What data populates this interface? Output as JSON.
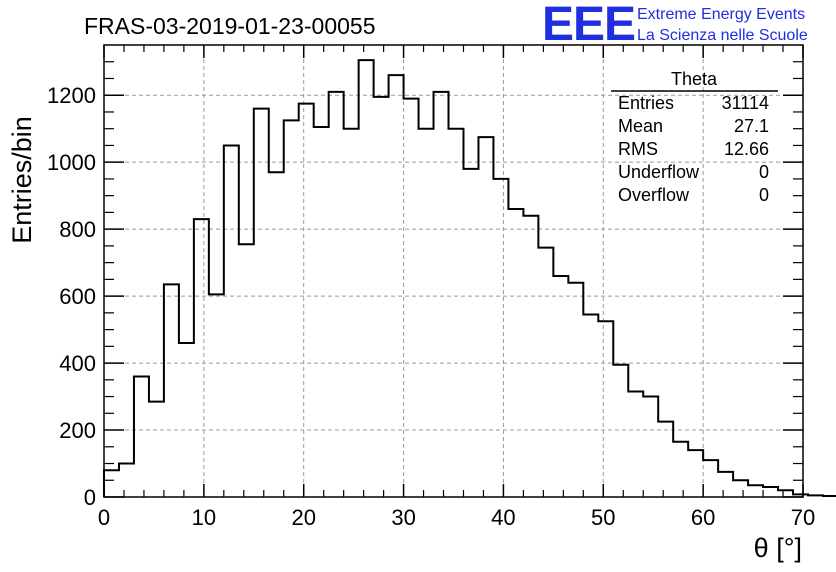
{
  "chart_data": {
    "type": "histogram",
    "title": "FRAS-03-2019-01-23-00055",
    "xlabel": "θ [°]",
    "ylabel": "Entries/bin",
    "xlim": [
      0,
      70
    ],
    "ylim": [
      0,
      1350
    ],
    "xticks": [
      0,
      10,
      20,
      30,
      40,
      50,
      60,
      70
    ],
    "yticks": [
      0,
      200,
      400,
      600,
      800,
      1000,
      1200
    ],
    "grid": true,
    "bin_width": 1.5,
    "bin_start": 0,
    "values": [
      80,
      100,
      360,
      285,
      635,
      460,
      830,
      605,
      1050,
      755,
      1160,
      970,
      1125,
      1175,
      1105,
      1210,
      1100,
      1305,
      1195,
      1260,
      1190,
      1100,
      1210,
      1100,
      980,
      1075,
      950,
      860,
      840,
      745,
      660,
      640,
      545,
      525,
      395,
      315,
      300,
      225,
      165,
      140,
      110,
      75,
      50,
      35,
      30,
      20,
      8,
      5,
      3,
      1
    ],
    "stats": {
      "name": "Theta",
      "rows": [
        {
          "label": "Entries",
          "value": "31114"
        },
        {
          "label": "Mean",
          "value": "27.1"
        },
        {
          "label": "RMS",
          "value": "12.66"
        },
        {
          "label": "Underflow",
          "value": "0"
        },
        {
          "label": "Overflow",
          "value": "0"
        }
      ]
    }
  },
  "logo": {
    "mark": "EEE",
    "line1": "Extreme Energy Events",
    "line2": "La Scienza nelle Scuole"
  },
  "colors": {
    "logo": "#1f2fe0",
    "histogram": "#000000",
    "grid": "#9a9a9a"
  }
}
